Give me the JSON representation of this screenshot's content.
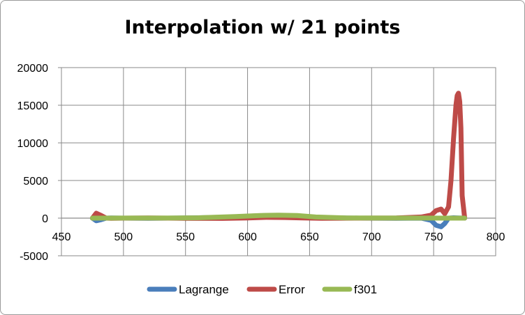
{
  "chart_data": {
    "type": "line",
    "title": "Interpolation w/ 21 points",
    "xlabel": "",
    "ylabel": "",
    "xlim": [
      450,
      800
    ],
    "ylim": [
      -5000,
      20000
    ],
    "x_ticks": [
      450,
      500,
      550,
      600,
      650,
      700,
      750,
      800
    ],
    "y_ticks": [
      -5000,
      0,
      5000,
      10000,
      15000,
      20000
    ],
    "x_tick_labels": [
      "450",
      "500",
      "550",
      "600",
      "650",
      "700",
      "750",
      "800"
    ],
    "y_tick_labels": [
      "-5000",
      "0",
      "5000",
      "10000",
      "15000",
      "20000"
    ],
    "grid": true,
    "legend_position": "bottom",
    "series": [
      {
        "name": "Lagrange",
        "color": "#4a7ebb",
        "x": [
          475,
          478,
          482,
          486,
          490,
          500,
          520,
          550,
          580,
          600,
          615,
          630,
          645,
          660,
          690,
          720,
          740,
          748,
          752,
          756,
          759,
          762,
          766,
          770,
          775
        ],
        "y": [
          0,
          -350,
          -200,
          0,
          20,
          0,
          -30,
          20,
          90,
          250,
          350,
          340,
          200,
          60,
          0,
          -30,
          0,
          -300,
          -950,
          -1150,
          -700,
          0,
          50,
          20,
          0
        ]
      },
      {
        "name": "Error",
        "color": "#be4b48",
        "x": [
          475,
          478,
          482,
          486,
          490,
          500,
          520,
          550,
          580,
          600,
          615,
          630,
          645,
          660,
          690,
          720,
          740,
          748,
          752,
          756,
          759,
          762,
          764,
          766,
          768,
          769,
          770,
          771,
          772,
          773,
          775
        ],
        "y": [
          0,
          650,
          350,
          0,
          -20,
          0,
          30,
          -20,
          -40,
          20,
          100,
          80,
          30,
          -20,
          0,
          20,
          150,
          400,
          1000,
          1200,
          600,
          1500,
          5000,
          10500,
          15000,
          16300,
          16600,
          15500,
          12000,
          3000,
          0
        ]
      },
      {
        "name": "f301",
        "color": "#98b954",
        "x": [
          475,
          500,
          530,
          560,
          590,
          610,
          625,
          640,
          655,
          680,
          710,
          740,
          760,
          775
        ],
        "y": [
          0,
          5,
          10,
          50,
          200,
          350,
          400,
          350,
          150,
          30,
          10,
          5,
          0,
          0
        ]
      }
    ]
  }
}
